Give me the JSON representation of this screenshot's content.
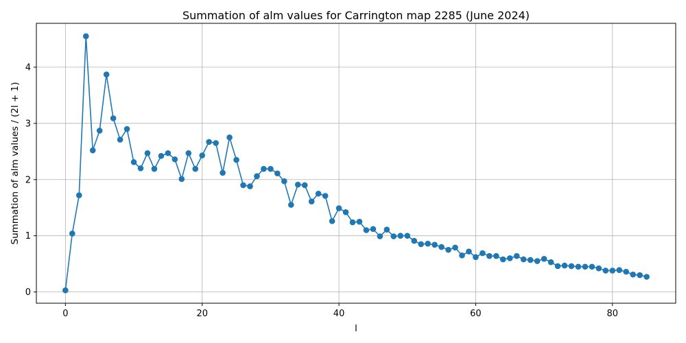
{
  "chart_data": {
    "type": "line",
    "title": "Summation of alm values for Carrington map 2285 (June 2024)",
    "xlabel": "l",
    "ylabel": "Summation of alm values / (2l + 1)",
    "xlim": [
      -4.25,
      89.25
    ],
    "ylim": [
      -0.2,
      4.78
    ],
    "xticks": [
      0,
      20,
      40,
      60,
      80
    ],
    "yticks": [
      0,
      1,
      2,
      3,
      4
    ],
    "grid": true,
    "marker": "circle",
    "color": "#1f77b4",
    "series": [
      {
        "x": [
          0,
          1,
          2,
          3,
          4,
          5,
          6,
          7,
          8,
          9,
          10,
          11,
          12,
          13,
          14,
          15,
          16,
          17,
          18,
          19,
          20,
          21,
          22,
          23,
          24,
          25,
          26,
          27,
          28,
          29,
          30,
          31,
          32,
          33,
          34,
          35,
          36,
          37,
          38,
          39,
          40,
          41,
          42,
          43,
          44,
          45,
          46,
          47,
          48,
          49,
          50,
          51,
          52,
          53,
          54,
          55,
          56,
          57,
          58,
          59,
          60,
          61,
          62,
          63,
          64,
          65,
          66,
          67,
          68,
          69,
          70,
          71,
          72,
          73,
          74,
          75,
          76,
          77,
          78,
          79,
          80,
          81,
          82,
          83,
          84,
          85
        ],
        "y": [
          0.03,
          1.04,
          1.72,
          4.55,
          2.52,
          2.87,
          3.87,
          3.09,
          2.71,
          2.9,
          2.31,
          2.2,
          2.47,
          2.19,
          2.42,
          2.47,
          2.36,
          2.01,
          2.47,
          2.19,
          2.43,
          2.67,
          2.65,
          2.12,
          2.75,
          2.35,
          1.9,
          1.88,
          2.06,
          2.19,
          2.19,
          2.11,
          1.97,
          1.55,
          1.91,
          1.9,
          1.61,
          1.75,
          1.71,
          1.26,
          1.49,
          1.42,
          1.24,
          1.25,
          1.1,
          1.12,
          0.99,
          1.11,
          0.99,
          1.0,
          1.0,
          0.91,
          0.85,
          0.86,
          0.84,
          0.8,
          0.75,
          0.79,
          0.65,
          0.72,
          0.62,
          0.69,
          0.64,
          0.64,
          0.58,
          0.6,
          0.64,
          0.58,
          0.57,
          0.55,
          0.59,
          0.53,
          0.46,
          0.47,
          0.46,
          0.45,
          0.45,
          0.45,
          0.42,
          0.38,
          0.38,
          0.39,
          0.36,
          0.31,
          0.3,
          0.27
        ]
      }
    ]
  }
}
